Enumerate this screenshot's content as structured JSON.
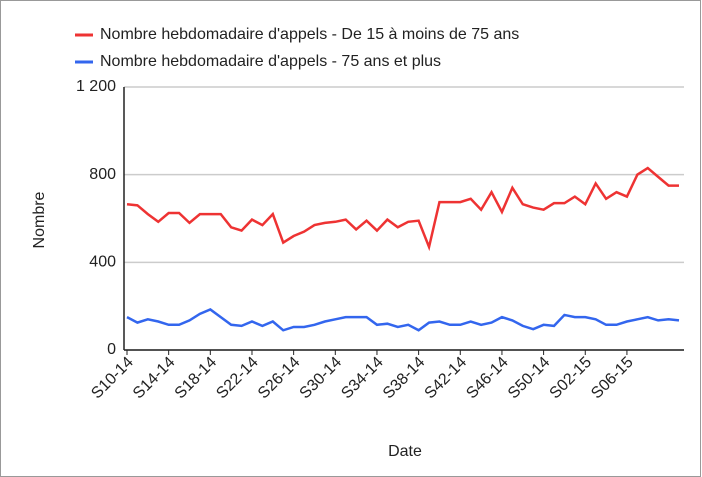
{
  "chart_data": {
    "type": "line",
    "x_label": "Date",
    "y_label": "Nombre",
    "categories": [
      "S10-14",
      null,
      null,
      null,
      "S14-14",
      null,
      null,
      null,
      "S18-14",
      null,
      null,
      null,
      "S22-14",
      null,
      null,
      null,
      "S26-14",
      null,
      null,
      null,
      "S30-14",
      null,
      null,
      null,
      "S34-14",
      null,
      null,
      null,
      "S38-14",
      null,
      null,
      null,
      "S42-14",
      null,
      null,
      null,
      "S46-14",
      null,
      null,
      null,
      "S50-14",
      null,
      null,
      null,
      "S02-15",
      null,
      null,
      null,
      "S06-15",
      null,
      null,
      null,
      null,
      null
    ],
    "series": [
      {
        "name": "Nombre hebdomadaire d'appels - De 15 à moins de 75 ans",
        "color": "#ee3333",
        "values": [
          665,
          660,
          620,
          585,
          625,
          625,
          580,
          620,
          620,
          620,
          560,
          545,
          595,
          570,
          620,
          490,
          520,
          540,
          570,
          580,
          585,
          595,
          550,
          590,
          545,
          595,
          560,
          585,
          590,
          470,
          675,
          675,
          675,
          690,
          640,
          720,
          630,
          740,
          665,
          650,
          640,
          670,
          670,
          700,
          665,
          760,
          690,
          720,
          700,
          800,
          830,
          790,
          750,
          750
        ]
      },
      {
        "name": "Nombre hebdomadaire d'appels - 75 ans et plus",
        "color": "#3366ee",
        "values": [
          150,
          125,
          140,
          130,
          115,
          115,
          135,
          165,
          185,
          150,
          115,
          110,
          130,
          110,
          130,
          90,
          105,
          105,
          115,
          130,
          140,
          150,
          150,
          150,
          115,
          120,
          105,
          115,
          90,
          125,
          130,
          115,
          115,
          130,
          115,
          125,
          150,
          135,
          110,
          95,
          115,
          110,
          160,
          150,
          150,
          140,
          115,
          115,
          130,
          140,
          150,
          135,
          140,
          135
        ]
      }
    ],
    "ylim": [
      0,
      1200
    ],
    "yticks": [
      0,
      400,
      800,
      {
        "value": 1200,
        "label": "1 200"
      }
    ],
    "grid": true
  }
}
